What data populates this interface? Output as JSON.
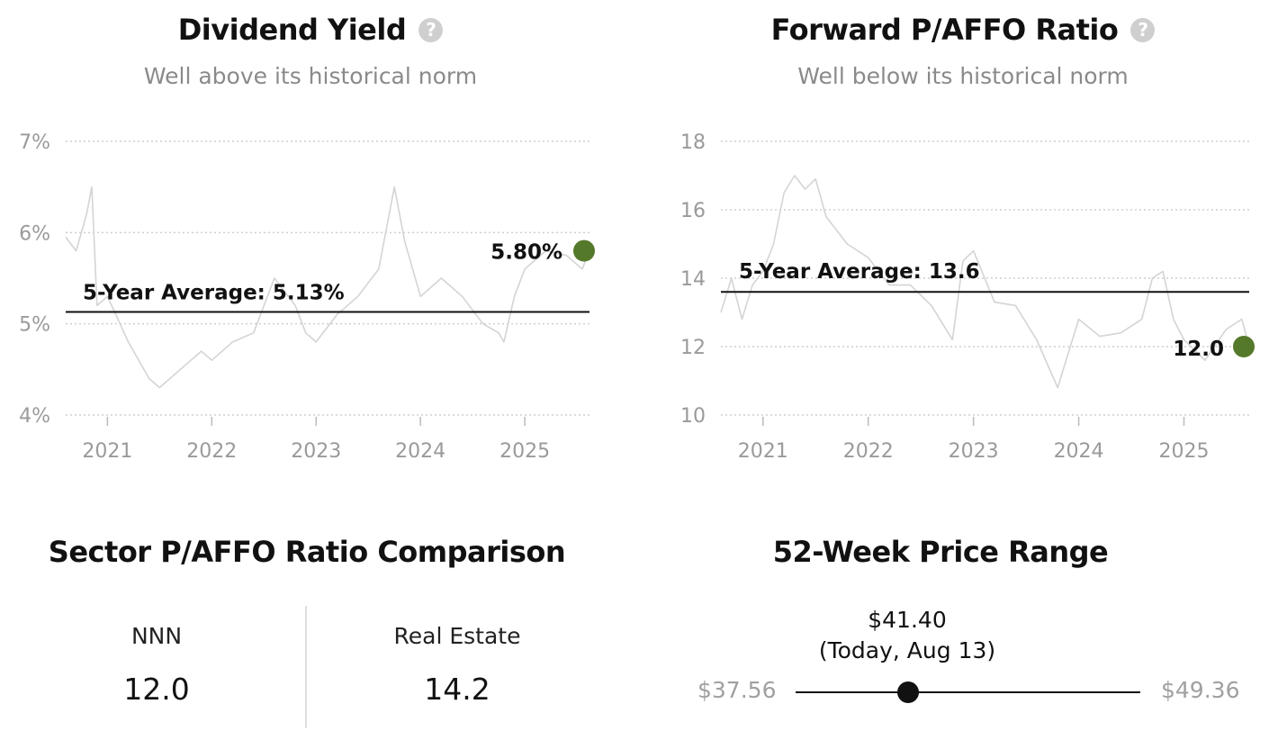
{
  "dividend_yield": {
    "title": "Dividend Yield",
    "help_icon": "question-circle-icon",
    "subtitle": "Well above its historical norm",
    "average_label": "5-Year Average: 5.13%",
    "current_label": "5.80%",
    "accent_color": "#55792a"
  },
  "forward_paffo": {
    "title": "Forward P/AFFO Ratio",
    "help_icon": "question-circle-icon",
    "subtitle": "Well below its historical norm",
    "average_label": "5-Year Average: 13.6",
    "current_label": "12.0",
    "accent_color": "#55792a"
  },
  "chart_data": [
    {
      "type": "line",
      "title": "Dividend Yield",
      "x": [
        2020.6,
        2020.7,
        2020.8,
        2020.85,
        2020.9,
        2021.0,
        2021.2,
        2021.4,
        2021.5,
        2021.7,
        2021.9,
        2022.0,
        2022.2,
        2022.4,
        2022.6,
        2022.8,
        2022.9,
        2023.0,
        2023.2,
        2023.4,
        2023.6,
        2023.75,
        2023.85,
        2024.0,
        2024.2,
        2024.4,
        2024.6,
        2024.75,
        2024.8,
        2024.9,
        2025.0,
        2025.2,
        2025.4,
        2025.55,
        2025.62
      ],
      "series": [
        {
          "values": [
            5.95,
            5.8,
            6.2,
            6.5,
            5.2,
            5.3,
            4.8,
            4.4,
            4.3,
            4.5,
            4.7,
            4.6,
            4.8,
            4.9,
            5.5,
            5.2,
            4.9,
            4.8,
            5.1,
            5.3,
            5.6,
            6.5,
            5.9,
            5.3,
            5.5,
            5.3,
            5.0,
            4.9,
            4.8,
            5.3,
            5.6,
            5.8,
            5.75,
            5.6,
            5.8
          ]
        }
      ],
      "average": 5.13,
      "current": 5.8,
      "ylim": [
        4,
        7
      ],
      "yticks": [
        "4%",
        "5%",
        "6%",
        "7%"
      ],
      "xticks": [
        "2021",
        "2022",
        "2023",
        "2024",
        "2025"
      ],
      "grid": true
    },
    {
      "type": "line",
      "title": "Forward P/AFFO Ratio",
      "x": [
        2020.6,
        2020.7,
        2020.8,
        2020.9,
        2021.0,
        2021.1,
        2021.2,
        2021.3,
        2021.4,
        2021.5,
        2021.6,
        2021.8,
        2022.0,
        2022.2,
        2022.4,
        2022.6,
        2022.8,
        2022.9,
        2023.0,
        2023.2,
        2023.4,
        2023.6,
        2023.7,
        2023.8,
        2023.9,
        2024.0,
        2024.2,
        2024.4,
        2024.6,
        2024.7,
        2024.8,
        2024.9,
        2025.0,
        2025.2,
        2025.4,
        2025.55,
        2025.62
      ],
      "series": [
        {
          "values": [
            13.0,
            14.0,
            12.8,
            13.8,
            14.2,
            15.0,
            16.5,
            17.0,
            16.6,
            16.9,
            15.8,
            15.0,
            14.6,
            13.8,
            13.8,
            13.2,
            12.2,
            14.5,
            14.8,
            13.3,
            13.2,
            12.2,
            11.5,
            10.8,
            11.8,
            12.8,
            12.3,
            12.4,
            12.8,
            14.0,
            14.2,
            12.8,
            12.2,
            11.6,
            12.5,
            12.8,
            12.0
          ]
        }
      ],
      "average": 13.6,
      "current": 12.0,
      "ylim": [
        10,
        18
      ],
      "yticks": [
        "10",
        "12",
        "14",
        "16",
        "18"
      ],
      "xticks": [
        "2021",
        "2022",
        "2023",
        "2024",
        "2025"
      ],
      "grid": true
    }
  ],
  "sector_comparison": {
    "title": "Sector P/AFFO Ratio Comparison",
    "left_label": "NNN",
    "left_value": "12.0",
    "right_label": "Real Estate",
    "right_value": "14.2"
  },
  "price_range": {
    "title": "52-Week Price Range",
    "low": "$37.56",
    "high": "$49.36",
    "today_price": "$41.40",
    "today_label": "(Today, Aug 13)",
    "low_value": 37.56,
    "high_value": 49.36,
    "today_value": 41.4
  }
}
